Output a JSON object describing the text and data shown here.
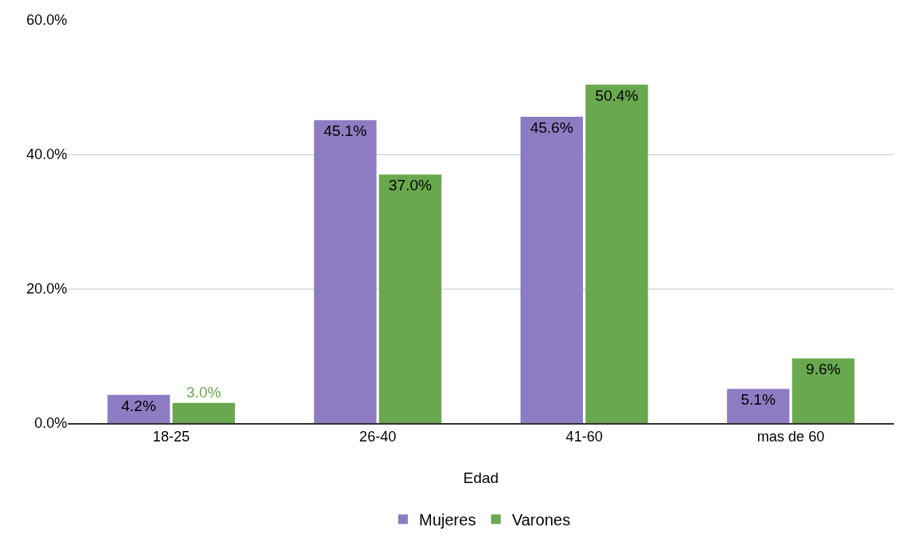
{
  "chart_data": {
    "type": "bar",
    "xlabel": "Edad",
    "categories": [
      "18-25",
      "26-40",
      "41-60",
      "mas de 60"
    ],
    "series": [
      {
        "name": "Mujeres",
        "color": "#8e7cc3",
        "values": [
          4.2,
          45.1,
          45.6,
          5.1
        ],
        "value_labels": [
          "4.2%",
          "45.1%",
          "45.6%",
          "5.1%"
        ]
      },
      {
        "name": "Varones",
        "color": "#6aa84f",
        "values": [
          3.0,
          37.0,
          50.4,
          9.6
        ],
        "value_labels": [
          "3.0%",
          "37.0%",
          "50.4%",
          "9.6%"
        ]
      }
    ],
    "ylim": [
      0,
      60
    ],
    "yticks": [
      {
        "value": 0,
        "label": "0.0%"
      },
      {
        "value": 20,
        "label": "20.0%"
      },
      {
        "value": 40,
        "label": "40.0%"
      },
      {
        "value": 60,
        "label": "60.0%"
      }
    ],
    "grid": "y",
    "legend": "bottom"
  }
}
